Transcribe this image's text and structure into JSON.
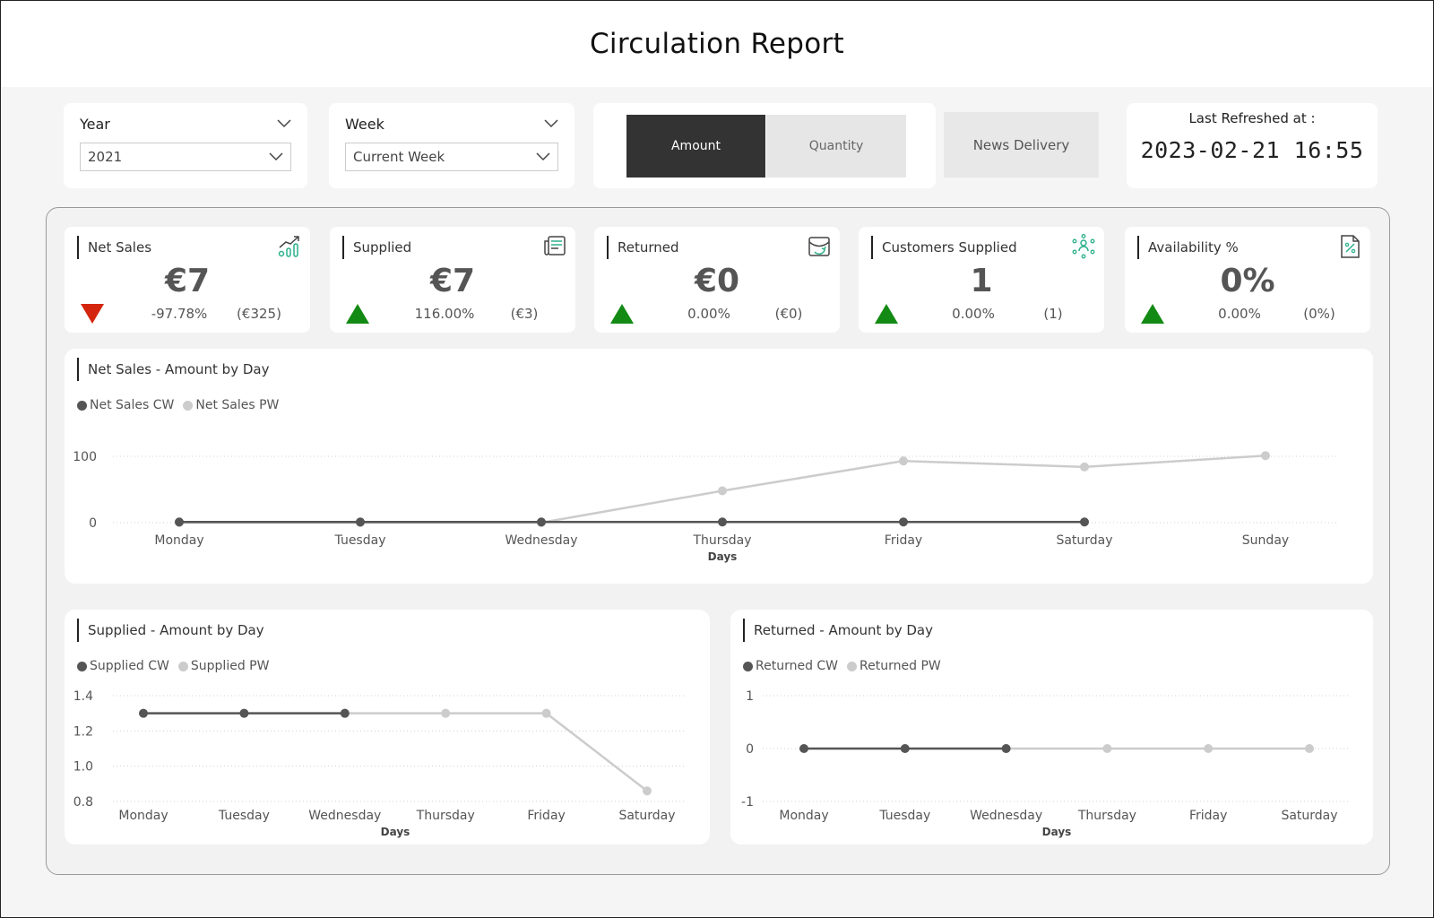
{
  "title": "Circulation Report",
  "filters": {
    "year": {
      "label": "Year",
      "value": "2021"
    },
    "week": {
      "label": "Week",
      "value": "Current Week"
    }
  },
  "toggle": {
    "amount": "Amount",
    "quantity": "Quantity",
    "selected": "Amount"
  },
  "news_delivery": "News Delivery",
  "refresh": {
    "label": "Last Refreshed at :",
    "value": "2023-02-21 16:55"
  },
  "colors": {
    "cw": "#555555",
    "pw": "#cccccc",
    "up": "#138a13",
    "down": "#d4260e",
    "icon": "#2bb08a"
  },
  "kpis": [
    {
      "title": "Net Sales",
      "value": "€7",
      "trend": "down",
      "pct": "-97.78%",
      "prev": "(€325)",
      "icon": "growth-chart-icon"
    },
    {
      "title": "Supplied",
      "value": "€7",
      "trend": "up",
      "pct": "116.00%",
      "prev": "(€3)",
      "icon": "newspaper-icon"
    },
    {
      "title": "Returned",
      "value": "€0",
      "trend": "up",
      "pct": "0.00%",
      "prev": "(€0)",
      "icon": "return-box-icon"
    },
    {
      "title": "Customers Supplied",
      "value": "1",
      "trend": "up",
      "pct": "0.00%",
      "prev": "(1)",
      "icon": "customers-network-icon"
    },
    {
      "title": "Availability %",
      "value": "0%",
      "trend": "up",
      "pct": "0.00%",
      "prev": "(0%)",
      "icon": "percent-document-icon"
    }
  ],
  "chart_data": [
    {
      "type": "line",
      "title": "Net Sales - Amount by Day",
      "xlabel": "Days",
      "ylabel": "",
      "categories": [
        "Monday",
        "Tuesday",
        "Wednesday",
        "Thursday",
        "Friday",
        "Saturday",
        "Sunday"
      ],
      "yticks": [
        "0",
        "100"
      ],
      "ylim": [
        0,
        100
      ],
      "grid": true,
      "legend_position": "top-left",
      "series": [
        {
          "name": "Net Sales CW",
          "values": [
            1,
            1,
            1,
            1,
            1,
            1,
            null
          ]
        },
        {
          "name": "Net Sales PW",
          "values": [
            0,
            0,
            0,
            48,
            93,
            84,
            101
          ]
        }
      ]
    },
    {
      "type": "line",
      "title": "Supplied - Amount by Day",
      "xlabel": "Days",
      "ylabel": "",
      "categories": [
        "Monday",
        "Tuesday",
        "Wednesday",
        "Thursday",
        "Friday",
        "Saturday"
      ],
      "yticks": [
        "0.8",
        "1.0",
        "1.2",
        "1.4"
      ],
      "ylim": [
        0.8,
        1.4
      ],
      "grid": true,
      "legend_position": "top-left",
      "series": [
        {
          "name": "Supplied CW",
          "values": [
            1.3,
            1.3,
            1.3,
            null,
            null,
            null
          ]
        },
        {
          "name": "Supplied PW",
          "values": [
            null,
            null,
            1.3,
            1.3,
            1.3,
            0.86
          ]
        }
      ]
    },
    {
      "type": "line",
      "title": "Returned - Amount by Day",
      "xlabel": "Days",
      "ylabel": "",
      "categories": [
        "Monday",
        "Tuesday",
        "Wednesday",
        "Thursday",
        "Friday",
        "Saturday"
      ],
      "yticks": [
        "-1",
        "0",
        "1"
      ],
      "ylim": [
        -1,
        1
      ],
      "grid": true,
      "legend_position": "top-left",
      "series": [
        {
          "name": "Returned CW",
          "values": [
            0,
            0,
            0,
            null,
            null,
            null
          ]
        },
        {
          "name": "Returned PW",
          "values": [
            null,
            null,
            0,
            0,
            0,
            0
          ]
        }
      ]
    }
  ]
}
